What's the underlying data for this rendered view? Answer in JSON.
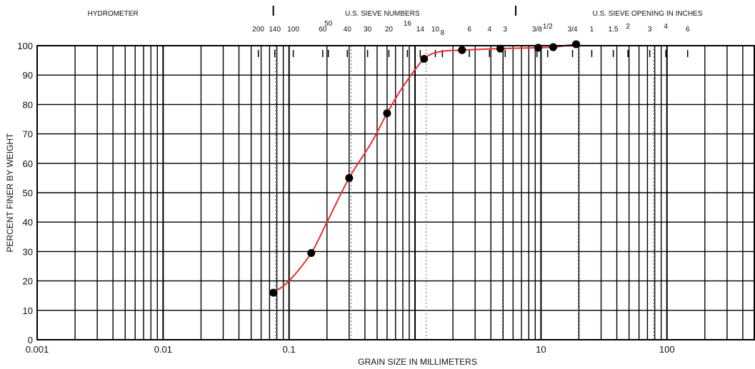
{
  "chart_data": {
    "type": "line",
    "xscale": "log",
    "xlim": [
      0.001,
      500
    ],
    "ylim": [
      0,
      100
    ],
    "xlabel": "GRAIN SIZE IN MILLIMETERS",
    "ylabel": "PERCENT FINER BY WEIGHT",
    "x_ticks": [
      0.001,
      0.01,
      0.1,
      10,
      100
    ],
    "x_tick_labels": [
      "0.001",
      "0.01",
      "0.1",
      "10",
      "100"
    ],
    "y_ticks": [
      0,
      10,
      20,
      30,
      40,
      50,
      60,
      70,
      80,
      90,
      100
    ],
    "y_tick_labels": [
      "0",
      "10",
      "20",
      "30",
      "40",
      "50",
      "60",
      "70",
      "80",
      "90",
      "100"
    ],
    "grid": true,
    "header_sections": [
      {
        "label": "HYDROMETER",
        "x": 0.004
      },
      {
        "label": "U.S. SIEVE NUMBERS",
        "x": 0.55
      },
      {
        "label": "U.S. SIEVE OPENING IN INCHES",
        "x": 70
      }
    ],
    "header_dividers": [
      0.075,
      6.3
    ],
    "sieve_numbers": [
      {
        "label": "200",
        "x": 0.057
      },
      {
        "label": "140",
        "x": 0.077
      },
      {
        "label": "100",
        "x": 0.108
      },
      {
        "label": "60",
        "x": 0.185
      },
      {
        "label": "50",
        "x": 0.205
      },
      {
        "label": "40",
        "x": 0.29
      },
      {
        "label": "30",
        "x": 0.42
      },
      {
        "label": "20",
        "x": 0.62
      },
      {
        "label": "16",
        "x": 0.87
      },
      {
        "label": "14",
        "x": 1.1
      },
      {
        "label": "10",
        "x": 1.45
      },
      {
        "label": "8",
        "x": 1.65
      },
      {
        "label": "6",
        "x": 2.7
      },
      {
        "label": "4",
        "x": 3.9
      },
      {
        "label": "3",
        "x": 5.2
      }
    ],
    "sieve_inches": [
      {
        "label": "3/8",
        "x": 9.3
      },
      {
        "label": "1/2",
        "x": 11.3
      },
      {
        "label": "3/4",
        "x": 17.8
      },
      {
        "label": "1",
        "x": 25.3
      },
      {
        "label": "1.5",
        "x": 37.5
      },
      {
        "label": "2",
        "x": 49
      },
      {
        "label": "3",
        "x": 73
      },
      {
        "label": "4",
        "x": 98
      },
      {
        "label": "6",
        "x": 146
      }
    ],
    "series": [
      {
        "points": [
          {
            "x": 0.075,
            "y": 16
          },
          {
            "x": 0.15,
            "y": 29.5
          },
          {
            "x": 0.3,
            "y": 55
          },
          {
            "x": 0.6,
            "y": 77
          },
          {
            "x": 1.18,
            "y": 95.5
          },
          {
            "x": 2.36,
            "y": 98.5
          },
          {
            "x": 4.75,
            "y": 99
          },
          {
            "x": 9.5,
            "y": 99.3
          },
          {
            "x": 12.5,
            "y": 99.5
          },
          {
            "x": 19,
            "y": 100.5
          }
        ],
        "curve": [
          {
            "x": 0.075,
            "y": 16
          },
          {
            "x": 0.1,
            "y": 20
          },
          {
            "x": 0.15,
            "y": 29.5
          },
          {
            "x": 0.2,
            "y": 40
          },
          {
            "x": 0.3,
            "y": 55
          },
          {
            "x": 0.45,
            "y": 67
          },
          {
            "x": 0.6,
            "y": 77
          },
          {
            "x": 0.8,
            "y": 86
          },
          {
            "x": 1.18,
            "y": 95.5
          },
          {
            "x": 1.6,
            "y": 98
          },
          {
            "x": 2.36,
            "y": 98.5
          },
          {
            "x": 4.75,
            "y": 99
          },
          {
            "x": 9.5,
            "y": 99.3
          },
          {
            "x": 12.5,
            "y": 99.5
          },
          {
            "x": 19,
            "y": 100.5
          }
        ],
        "line_color": "#e8302a",
        "marker_color": "#000000"
      }
    ]
  }
}
